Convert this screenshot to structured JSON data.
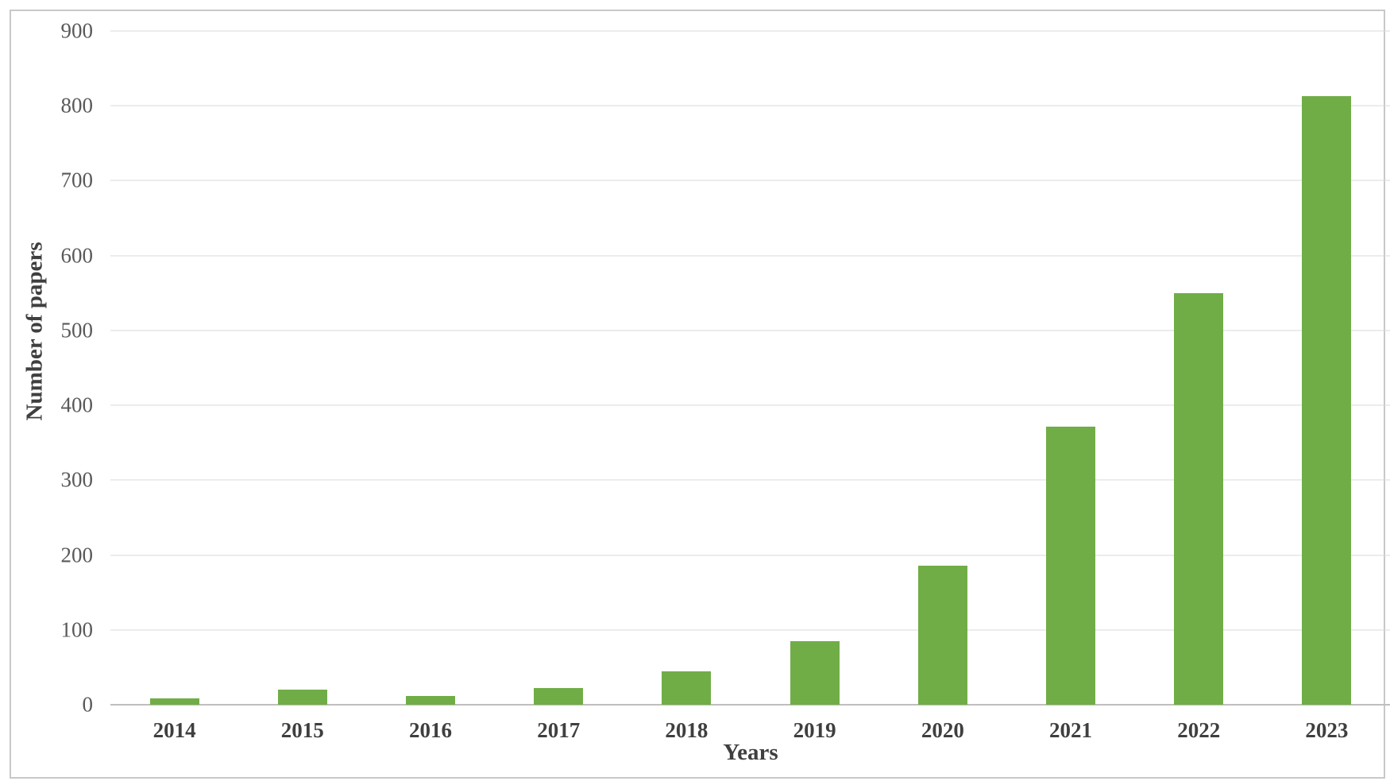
{
  "chart_data": {
    "type": "bar",
    "title": "",
    "xlabel": "Years",
    "ylabel": "Number of papers",
    "categories": [
      "2014",
      "2015",
      "2016",
      "2017",
      "2018",
      "2019",
      "2020",
      "2021",
      "2022",
      "2023"
    ],
    "values": [
      9,
      20,
      12,
      22,
      45,
      85,
      186,
      372,
      550,
      813
    ],
    "ylim": [
      0,
      900
    ],
    "yticks": [
      0,
      100,
      200,
      300,
      400,
      500,
      600,
      700,
      800,
      900
    ],
    "grid": true,
    "legend_position": "none",
    "colors": {
      "bar": "#70AD47",
      "gridline": "#d9d9d9",
      "axis_line": "#bfbfbf",
      "tick_label": "#595959",
      "axis_title": "#3f3f3f",
      "frame_border": "#c8c8c8",
      "background": "#ffffff"
    }
  }
}
